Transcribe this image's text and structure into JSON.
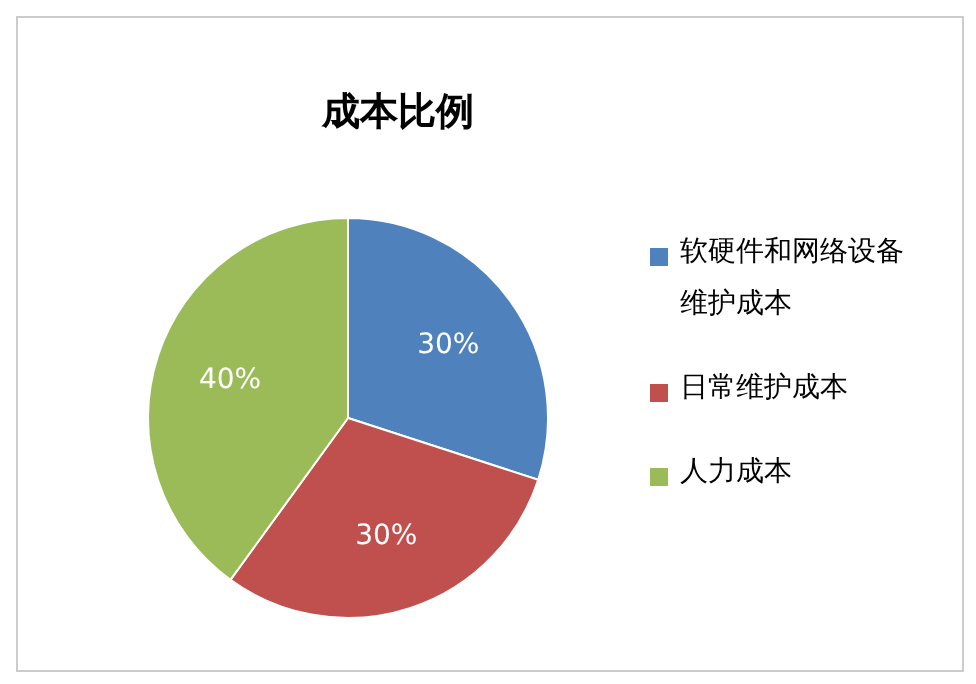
{
  "chart_data": {
    "type": "pie",
    "title": "成本比例",
    "categories": [
      "软硬件和网络设备维护成本",
      "日常维护成本",
      "人力成本"
    ],
    "values": [
      30,
      30,
      40
    ],
    "colors": [
      "#4f81bd",
      "#c0504d",
      "#9bbb59"
    ],
    "value_labels": [
      "30%",
      "30%",
      "40%"
    ],
    "legend": "right"
  }
}
